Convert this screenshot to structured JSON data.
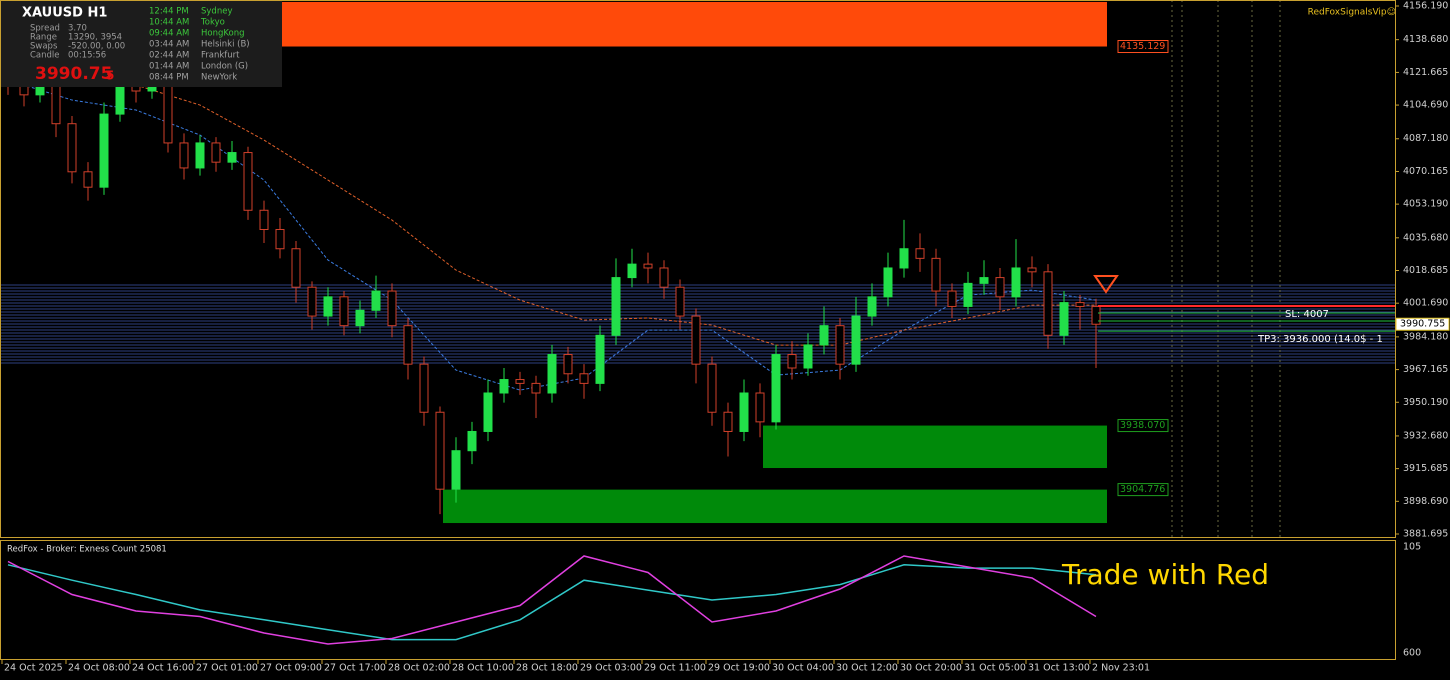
{
  "chart_data": {
    "type": "candlestick",
    "symbol_title": "XAUUSD   H1",
    "brand": "RedFoxSignalsVip☺",
    "up_color": "#22e04a",
    "down_color": "#d0402a",
    "ylim": [
      3880.14,
      4159.31
    ],
    "yticks": [
      {
        "value": 4156.19,
        "label": "4156.190"
      },
      {
        "value": 4138.68,
        "label": "4138.680"
      },
      4121.665,
      {
        "value": 4104.69,
        "label": "4104.690"
      },
      {
        "value": 4087.18,
        "label": "4087.180"
      },
      4070.165,
      {
        "value": 4053.19,
        "label": "4053.190"
      },
      {
        "value": 4035.68,
        "label": "4035.680"
      },
      4018.685,
      {
        "value": 4001.69,
        "label": "4001.690"
      },
      {
        "value": 3984.18,
        "label": "3984.180"
      },
      3967.165,
      {
        "value": 3950.19,
        "label": "3950.190"
      },
      {
        "value": 3932.68,
        "label": "3932.680"
      },
      3915.685,
      {
        "value": 3898.69,
        "label": "3898.690"
      },
      3881.695
    ],
    "x_labels": [
      "24 Oct 2025",
      "24 Oct 08:00",
      "24 Oct 16:00",
      "27 Oct 01:00",
      "27 Oct 09:00",
      "27 Oct 17:00",
      "28 Oct 02:00",
      "28 Oct 10:00",
      "28 Oct 18:00",
      "29 Oct 03:00",
      "29 Oct 11:00",
      "29 Oct 19:00",
      "30 Oct 04:00",
      "30 Oct 12:00",
      "30 Oct 20:00",
      "31 Oct 05:00",
      "31 Oct 13:00",
      "2 Nov 23:01"
    ],
    "open": [
      4120,
      4115,
      4110,
      4118,
      4095,
      4070,
      4062,
      4100,
      4120,
      4112,
      4118,
      4085,
      4072,
      4085,
      4075,
      4080,
      4050,
      4040,
      4030,
      4010,
      3995,
      4005,
      3990,
      3998,
      4008,
      3990,
      3970,
      3945,
      3905,
      3925,
      3935,
      3955,
      3962,
      3960,
      3955,
      3975,
      3965,
      3960,
      3985,
      4015,
      4022,
      4020,
      4010,
      3995,
      3970,
      3945,
      3935,
      3955,
      3940,
      3975,
      3968,
      3980,
      3990,
      3970,
      3995,
      4005,
      4020,
      4030,
      4025,
      4008,
      4000,
      4012,
      4015,
      4005,
      4020,
      4018,
      3985,
      4002,
      4000
    ],
    "high": [
      4126,
      4119,
      4123,
      4121,
      4099,
      4075,
      4106,
      4126,
      4124,
      4123,
      4121,
      4090,
      4089,
      4088,
      4086,
      4083,
      4055,
      4046,
      4034,
      4013,
      4010,
      4008,
      4003,
      4016,
      4012,
      3994,
      3974,
      3948,
      3932,
      3940,
      3962,
      3968,
      3966,
      3964,
      3980,
      3979,
      3970,
      3990,
      4025,
      4030,
      4028,
      4024,
      4014,
      3999,
      3974,
      3950,
      3962,
      3960,
      3980,
      3982,
      3986,
      4000,
      3994,
      4005,
      4012,
      4028,
      4045,
      4038,
      4030,
      4012,
      4018,
      4024,
      4020,
      4035,
      4026,
      4022,
      4008,
      4006,
      4004
    ],
    "low": [
      4110,
      4104,
      4106,
      4088,
      4064,
      4055,
      4058,
      4096,
      4106,
      4108,
      4080,
      4066,
      4068,
      4070,
      4071,
      4045,
      4033,
      4025,
      4002,
      3988,
      3990,
      3985,
      3986,
      3994,
      3984,
      3962,
      3938,
      3892,
      3898,
      3918,
      3930,
      3950,
      3954,
      3942,
      3950,
      3960,
      3952,
      3956,
      3980,
      4010,
      4012,
      4004,
      3988,
      3960,
      3938,
      3922,
      3930,
      3932,
      3936,
      3962,
      3964,
      3975,
      3962,
      3966,
      3990,
      4000,
      4015,
      4018,
      4000,
      3994,
      3996,
      4006,
      3998,
      4000,
      4010,
      3978,
      3980,
      3988,
      3968
    ],
    "close": [
      4115,
      4110,
      4118,
      4095,
      4070,
      4062,
      4100,
      4120,
      4112,
      4118,
      4085,
      4072,
      4085,
      4075,
      4080,
      4050,
      4040,
      4030,
      4010,
      3995,
      4005,
      3990,
      3998,
      4008,
      3990,
      3970,
      3945,
      3905,
      3925,
      3935,
      3955,
      3962,
      3960,
      3955,
      3975,
      3965,
      3960,
      3985,
      4015,
      4022,
      4020,
      4010,
      3995,
      3970,
      3945,
      3935,
      3955,
      3940,
      3975,
      3968,
      3980,
      3990,
      3970,
      3995,
      4005,
      4020,
      4030,
      4025,
      4008,
      4000,
      4012,
      4015,
      4005,
      4020,
      4018,
      3985,
      4002,
      4000,
      3990.755
    ],
    "moving_averages": [
      {
        "color": "#3a7be0",
        "values": [
          4117.7,
          4107.3,
          4102.1,
          4089.1,
          4065.7,
          4024.1,
          4003.3,
          3966.9,
          3956.5,
          3962.8,
          3987.7,
          3987.7,
          3964.3,
          3966.9,
          3987.7,
          4005.9,
          4008.5,
          4003.3
        ]
      },
      {
        "color": "#e0602a",
        "values": [
          null,
          null,
          4115.1,
          4104.7,
          4086.5,
          4065.7,
          4044.9,
          4018.9,
          4003.3,
          3992.9,
          3994.0,
          3990.3,
          3979.9,
          3979.9,
          3987.7,
          3994.0,
          4000.7,
          4000.7
        ]
      }
    ],
    "zones": [
      {
        "color": "#ff4a0a",
        "level": {
          "value": 4135.129,
          "label": "4135.129"
        },
        "edge": 4158.3,
        "label_color": "#ff5020"
      },
      {
        "color": "#008a0a",
        "level": {
          "value": 3938.07,
          "label": "3938.070"
        },
        "edge": 3916.0,
        "label_color": "#1fa01f"
      },
      {
        "color": "#008a0a",
        "level": {
          "value": 3904.776,
          "label": "3904.776"
        },
        "edge": 3887.4,
        "label_color": "#1fa01f"
      }
    ],
    "trade_levels": [
      {
        "price": 4000.2,
        "color": "#ff2a2a"
      },
      {
        "price": 3996.6,
        "color": "#22c040"
      },
      {
        "price": 3992.4,
        "color": "#22c040"
      },
      {
        "price": 3987.2,
        "color": "#22c040"
      }
    ],
    "trade_texts": [
      "SL: 4007",
      "TP3: 3936.000 (14.0$ - 1"
    ],
    "current_price": {
      "value": 3990.755,
      "label": "3990.755"
    },
    "info": {
      "rows": [
        [
          "Spread",
          "3.70"
        ],
        [
          "Range",
          "13290, 3954"
        ],
        [
          "Swaps",
          "-520.00, 0.00"
        ],
        [
          "Candle",
          "00:15:56"
        ]
      ],
      "price": "3990.75",
      "price_last_digit": "5",
      "sessions": [
        {
          "time": "12:44 PM",
          "city": "Sydney",
          "color": "#3cc83c"
        },
        {
          "time": "10:44 AM",
          "city": "Tokyo",
          "color": "#3cc83c"
        },
        {
          "time": "09:44 AM",
          "city": "HongKong",
          "color": "#3cc83c"
        },
        {
          "time": "03:44 AM",
          "city": "Helsinki  (B)",
          "color": "#a0a0a0"
        },
        {
          "time": "02:44 AM",
          "city": "Frankfurt",
          "color": "#a0a0a0"
        },
        {
          "time": "01:44 AM",
          "city": "London  (G)",
          "color": "#a0a0a0"
        },
        {
          "time": "08:44 PM",
          "city": "NewYork",
          "color": "#a0a0a0"
        }
      ]
    },
    "indicator": {
      "title": "RedFox -  Broker: Exness    Count   25081",
      "slogan": "Trade with Red",
      "scale_top": "105",
      "scale_bottom": "600",
      "ylim": [
        0,
        100
      ],
      "lines": [
        {
          "color": "#30c8c8",
          "values": [
            82,
            68,
            55,
            41,
            32,
            23,
            14,
            14,
            32,
            68,
            59,
            50,
            55,
            64,
            82,
            79,
            79,
            73
          ]
        },
        {
          "color": "#e040e0",
          "values": [
            85,
            55,
            40,
            35,
            20,
            10,
            15,
            30,
            45,
            90,
            75,
            30,
            40,
            60,
            90,
            80,
            70,
            35
          ]
        }
      ]
    }
  }
}
